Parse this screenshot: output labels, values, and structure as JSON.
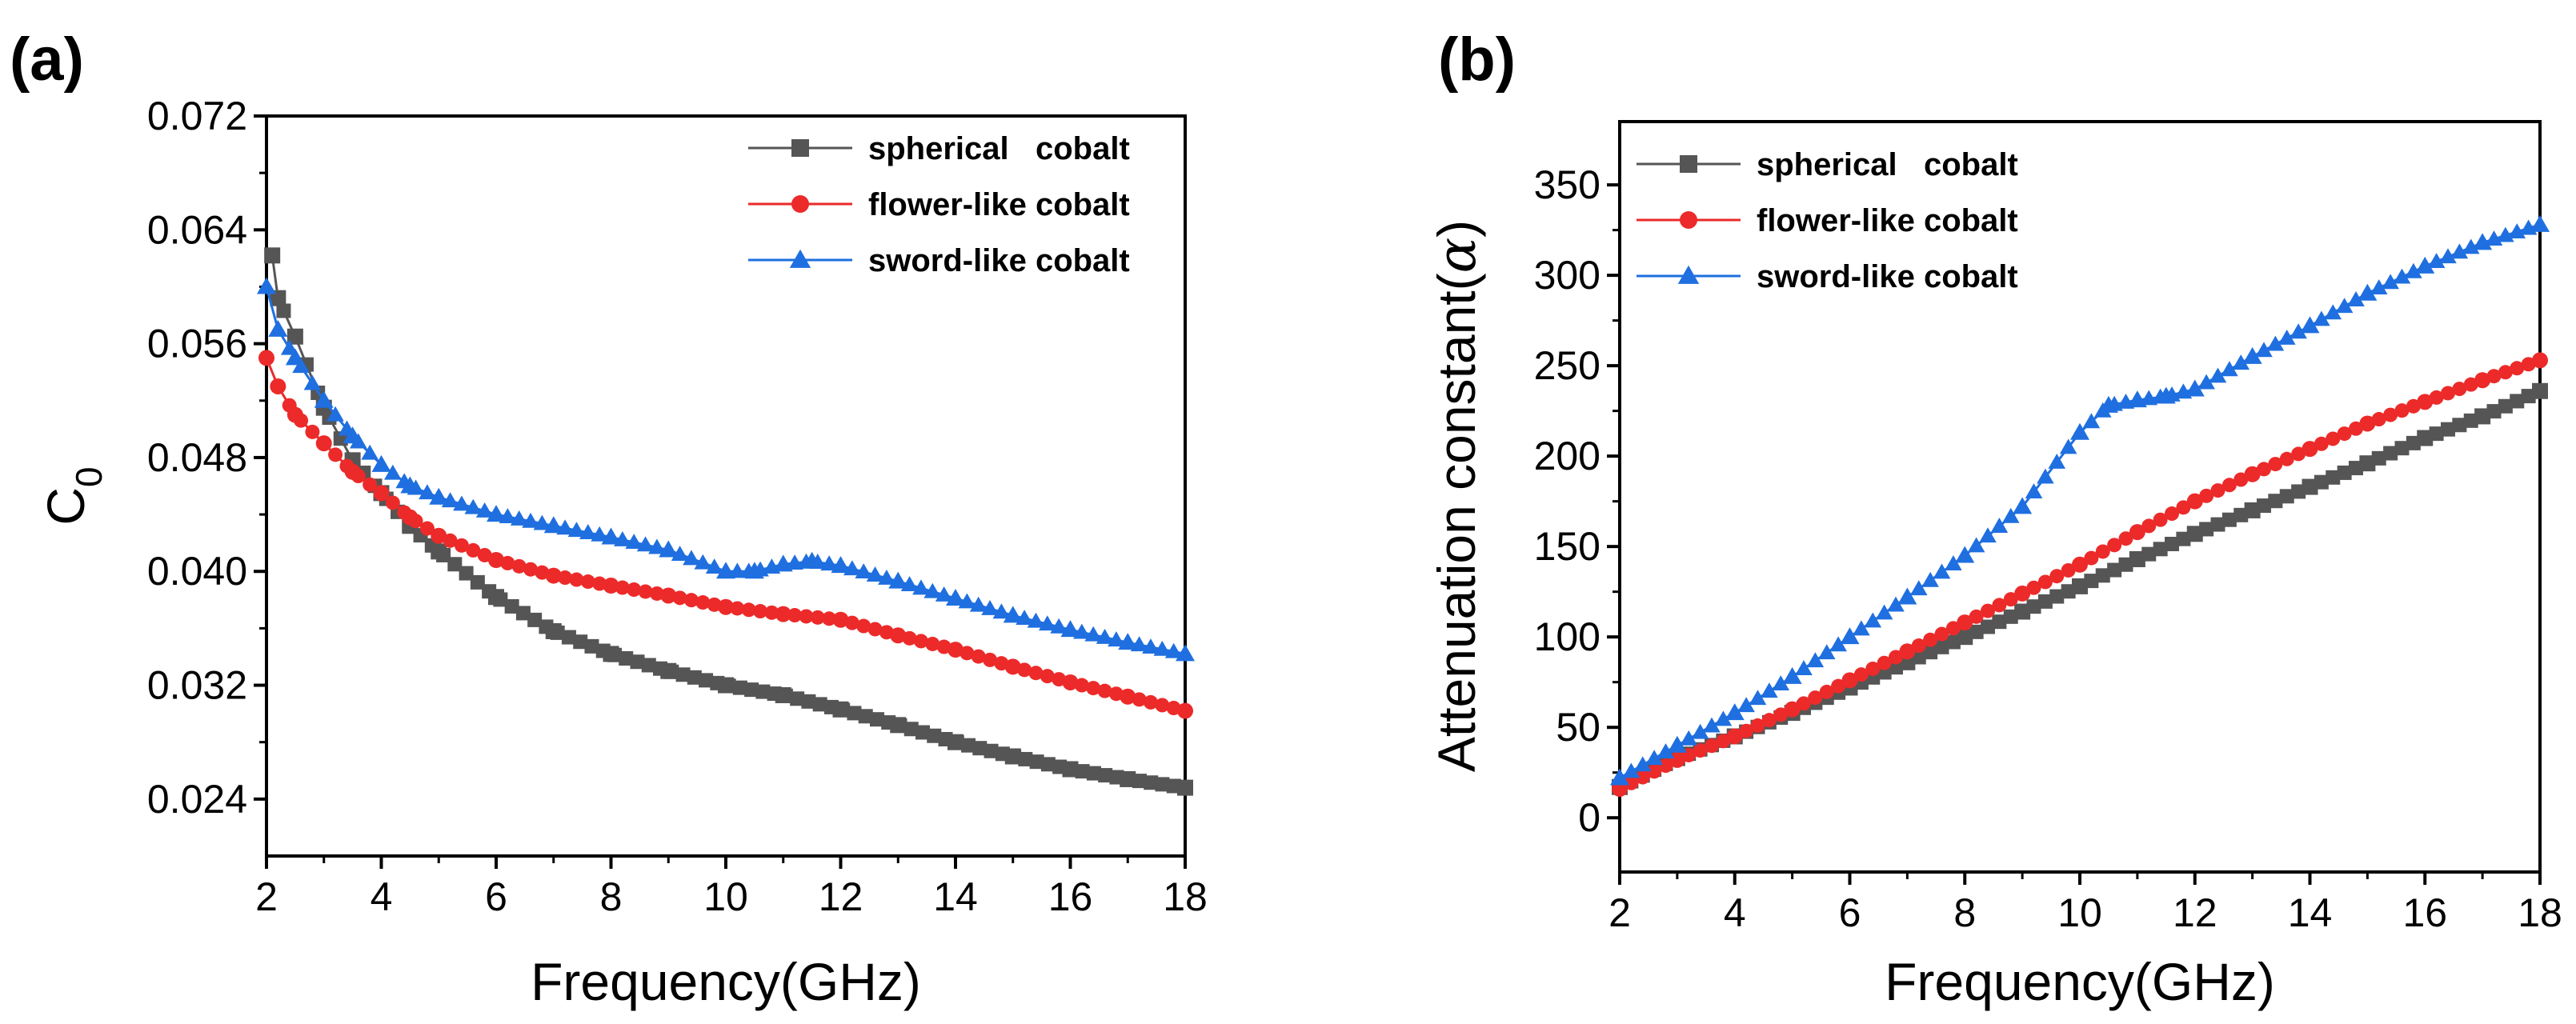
{
  "chart_data": [
    {
      "panel_label": "(a)",
      "type": "scatter",
      "xlabel": "Frequency(GHz)",
      "ylabel": "C",
      "ylabel_sub": "0",
      "xlim": [
        2,
        18
      ],
      "ylim": [
        0.02,
        0.072
      ],
      "xticks": [
        2,
        4,
        6,
        8,
        10,
        12,
        14,
        16,
        18
      ],
      "yticks": [
        0.024,
        0.032,
        0.04,
        0.048,
        0.056,
        0.064,
        0.072
      ],
      "ytick_labels": [
        "0.024",
        "0.032",
        "0.040",
        "0.048",
        "0.056",
        "0.064",
        "0.072"
      ],
      "legend_position": "top-right",
      "series": [
        {
          "name": "spherical   cobalt",
          "color": "#555555",
          "marker": "square",
          "x": [
            2.1,
            2.2,
            2.5,
            3,
            3.5,
            4,
            4.5,
            5,
            6,
            7,
            8,
            9,
            10,
            11,
            12,
            13,
            14,
            15,
            16,
            17,
            18
          ],
          "y": [
            0.0622,
            0.0592,
            0.0565,
            0.0515,
            0.0478,
            0.0455,
            0.0432,
            0.0414,
            0.0382,
            0.0358,
            0.0342,
            0.033,
            0.032,
            0.0313,
            0.0303,
            0.0292,
            0.028,
            0.027,
            0.0261,
            0.0254,
            0.0248
          ]
        },
        {
          "name": "flower-like cobalt",
          "color": "#ec2a2a",
          "marker": "circle",
          "x": [
            2,
            2.2,
            2.5,
            3,
            3.5,
            4,
            4.5,
            5,
            6,
            7,
            8,
            9,
            10,
            11,
            12,
            13,
            14,
            15,
            16,
            17,
            18
          ],
          "y": [
            0.055,
            0.053,
            0.051,
            0.049,
            0.047,
            0.0455,
            0.0438,
            0.0425,
            0.0408,
            0.0397,
            0.039,
            0.0383,
            0.0375,
            0.037,
            0.0366,
            0.0355,
            0.0345,
            0.0333,
            0.0322,
            0.0312,
            0.0302
          ]
        },
        {
          "name": "sword-like cobalt",
          "color": "#1f6fe0",
          "marker": "triangle",
          "x": [
            2,
            2.2,
            2.5,
            3,
            3.5,
            4,
            4.5,
            5,
            6,
            7,
            8,
            9,
            10,
            10.5,
            11,
            11.5,
            12,
            13,
            14,
            15,
            16,
            17,
            18
          ],
          "y": [
            0.06,
            0.057,
            0.055,
            0.052,
            0.0495,
            0.0475,
            0.046,
            0.0452,
            0.044,
            0.0432,
            0.0424,
            0.0415,
            0.04,
            0.04,
            0.0405,
            0.0407,
            0.0404,
            0.0393,
            0.0381,
            0.0369,
            0.0359,
            0.035,
            0.0342
          ]
        }
      ]
    },
    {
      "panel_label": "(b)",
      "type": "scatter",
      "xlabel": "Frequency(GHz)",
      "ylabel": "Attenuation constant(",
      "ylabel_symbol": "α",
      "ylabel_end": ")",
      "xlim": [
        2,
        18
      ],
      "ylim": [
        -30,
        385
      ],
      "xticks": [
        2,
        4,
        6,
        8,
        10,
        12,
        14,
        16,
        18
      ],
      "yticks": [
        0,
        50,
        100,
        150,
        200,
        250,
        300,
        350
      ],
      "ytick_labels": [
        "0",
        "50",
        "100",
        "150",
        "200",
        "250",
        "300",
        "350"
      ],
      "legend_position": "top-left",
      "series": [
        {
          "name": "spherical   cobalt",
          "color": "#555555",
          "marker": "square",
          "x": [
            2,
            3,
            4,
            5,
            6,
            7,
            8,
            9,
            10,
            11,
            12,
            13,
            14,
            15,
            16,
            17,
            18
          ],
          "y": [
            17,
            33,
            45,
            58,
            72,
            86,
            100,
            114,
            128,
            143,
            157,
            170,
            183,
            196,
            210,
            222,
            236
          ]
        },
        {
          "name": "flower-like cobalt",
          "color": "#ec2a2a",
          "marker": "circle",
          "x": [
            2,
            3,
            4,
            5,
            6,
            7,
            8,
            9,
            10,
            11,
            12,
            13,
            14,
            15,
            16,
            17,
            18
          ],
          "y": [
            16,
            32,
            45,
            60,
            76,
            92,
            108,
            124,
            140,
            158,
            175,
            190,
            204,
            218,
            230,
            242,
            253
          ]
        },
        {
          "name": "sword-like cobalt",
          "color": "#1f6fe0",
          "marker": "triangle",
          "x": [
            2,
            3,
            4,
            5,
            6,
            7,
            8,
            9,
            10,
            10.5,
            11,
            11.5,
            12,
            13,
            14,
            15,
            16,
            17,
            18
          ],
          "y": [
            22,
            40,
            58,
            78,
            100,
            122,
            145,
            172,
            213,
            228,
            231,
            233,
            237,
            255,
            272,
            290,
            305,
            318,
            328
          ]
        }
      ]
    }
  ]
}
